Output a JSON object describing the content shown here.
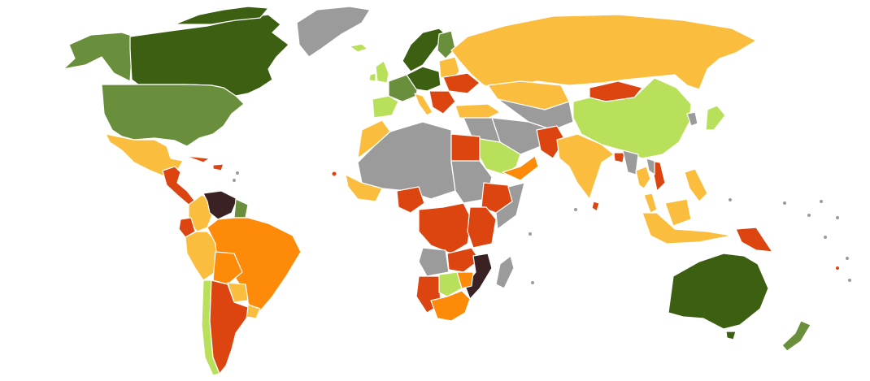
{
  "map": {
    "colors": {
      "dark_green": "#3c5f12",
      "mid_green": "#6a8f3c",
      "light_green": "#b9e05a",
      "yellow_orange": "#fbbd3d",
      "orange": "#fd8a08",
      "red_orange": "#dd4510",
      "dark_brown": "#3a2224",
      "gray": "#9b9b9b"
    },
    "regions": [
      {
        "id": "alaska",
        "color": "mid_green"
      },
      {
        "id": "canada",
        "color": "dark_green"
      },
      {
        "id": "greenland",
        "color": "gray"
      },
      {
        "id": "iceland",
        "color": "light_green"
      },
      {
        "id": "usa",
        "color": "mid_green"
      },
      {
        "id": "mexico",
        "color": "yellow_orange"
      },
      {
        "id": "central-america",
        "color": "red_orange"
      },
      {
        "id": "colombia",
        "color": "yellow_orange"
      },
      {
        "id": "venezuela",
        "color": "dark_brown"
      },
      {
        "id": "guianas",
        "color": "mid_green"
      },
      {
        "id": "ecuador",
        "color": "red_orange"
      },
      {
        "id": "peru",
        "color": "yellow_orange"
      },
      {
        "id": "brazil",
        "color": "orange"
      },
      {
        "id": "bolivia",
        "color": "orange"
      },
      {
        "id": "paraguay",
        "color": "yellow_orange"
      },
      {
        "id": "chile",
        "color": "light_green"
      },
      {
        "id": "argentina",
        "color": "red_orange"
      },
      {
        "id": "uruguay",
        "color": "yellow_orange"
      },
      {
        "id": "uk-ireland",
        "color": "light_green"
      },
      {
        "id": "scandinavia",
        "color": "dark_green"
      },
      {
        "id": "finland",
        "color": "mid_green"
      },
      {
        "id": "western-europe",
        "color": "mid_green"
      },
      {
        "id": "central-europe",
        "color": "dark_green"
      },
      {
        "id": "iberia",
        "color": "light_green"
      },
      {
        "id": "italy",
        "color": "yellow_orange"
      },
      {
        "id": "eastern-europe",
        "color": "yellow_orange"
      },
      {
        "id": "ukraine",
        "color": "red_orange"
      },
      {
        "id": "balkans",
        "color": "red_orange"
      },
      {
        "id": "turkey",
        "color": "yellow_orange"
      },
      {
        "id": "russia",
        "color": "yellow_orange"
      },
      {
        "id": "kazakhstan",
        "color": "yellow_orange"
      },
      {
        "id": "mongolia",
        "color": "red_orange"
      },
      {
        "id": "china",
        "color": "light_green"
      },
      {
        "id": "korea",
        "color": "gray"
      },
      {
        "id": "japan",
        "color": "light_green"
      },
      {
        "id": "central-asia",
        "color": "gray"
      },
      {
        "id": "iran-afghanistan",
        "color": "gray"
      },
      {
        "id": "pakistan",
        "color": "red_orange"
      },
      {
        "id": "india",
        "color": "yellow_orange"
      },
      {
        "id": "sri-lanka",
        "color": "red_orange"
      },
      {
        "id": "myanmar",
        "color": "gray"
      },
      {
        "id": "bangladesh",
        "color": "red_orange"
      },
      {
        "id": "thailand",
        "color": "yellow_orange"
      },
      {
        "id": "vietnam",
        "color": "red_orange"
      },
      {
        "id": "indochina",
        "color": "gray"
      },
      {
        "id": "philippines",
        "color": "yellow_orange"
      },
      {
        "id": "malaysia",
        "color": "yellow_orange"
      },
      {
        "id": "indonesia",
        "color": "yellow_orange"
      },
      {
        "id": "papua-new-guinea",
        "color": "red_orange"
      },
      {
        "id": "australia",
        "color": "dark_green"
      },
      {
        "id": "new-zealand",
        "color": "mid_green"
      },
      {
        "id": "middle-east",
        "color": "gray"
      },
      {
        "id": "saudi-arabia",
        "color": "light_green"
      },
      {
        "id": "yemen-oman",
        "color": "orange"
      },
      {
        "id": "morocco",
        "color": "yellow_orange"
      },
      {
        "id": "sahara-sahel",
        "color": "gray"
      },
      {
        "id": "egypt",
        "color": "red_orange"
      },
      {
        "id": "sudan",
        "color": "gray"
      },
      {
        "id": "west-africa-coast",
        "color": "yellow_orange"
      },
      {
        "id": "nigeria",
        "color": "red_orange"
      },
      {
        "id": "ethiopia",
        "color": "red_orange"
      },
      {
        "id": "somalia",
        "color": "gray"
      },
      {
        "id": "central-africa",
        "color": "red_orange"
      },
      {
        "id": "east-africa",
        "color": "red_orange"
      },
      {
        "id": "angola",
        "color": "gray"
      },
      {
        "id": "zambia",
        "color": "red_orange"
      },
      {
        "id": "mozambique",
        "color": "dark_brown"
      },
      {
        "id": "namibia",
        "color": "red_orange"
      },
      {
        "id": "botswana",
        "color": "light_green"
      },
      {
        "id": "zimbabwe",
        "color": "orange"
      },
      {
        "id": "south-africa",
        "color": "orange"
      },
      {
        "id": "madagascar",
        "color": "gray"
      }
    ]
  }
}
